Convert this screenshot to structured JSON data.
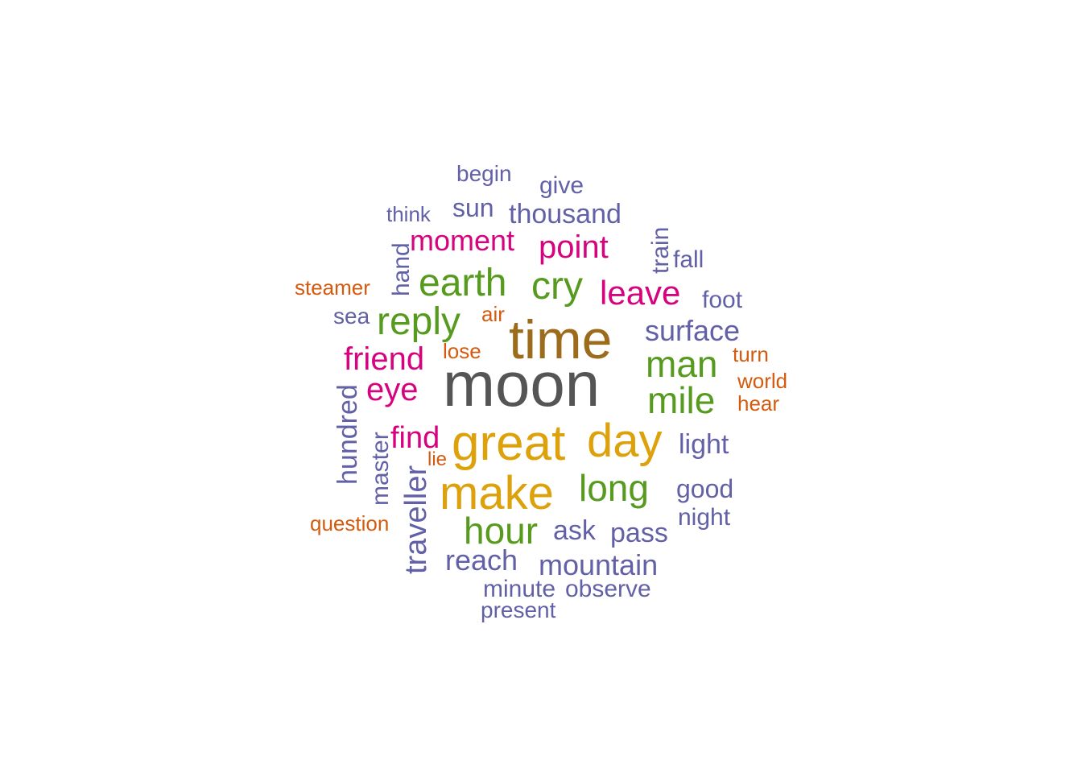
{
  "palette": {
    "dark_gray": "#555555",
    "brown": "#9C6B1C",
    "gold": "#DDA10C",
    "green": "#569A1E",
    "magenta": "#D6037F",
    "purple": "#6260A6",
    "orange": "#D45B0E"
  },
  "words": [
    {
      "text": "moon",
      "color": "dark_gray"
    },
    {
      "text": "time",
      "color": "brown"
    },
    {
      "text": "great",
      "color": "gold"
    },
    {
      "text": "day",
      "color": "gold"
    },
    {
      "text": "make",
      "color": "gold"
    },
    {
      "text": "earth",
      "color": "green"
    },
    {
      "text": "cry",
      "color": "green"
    },
    {
      "text": "reply",
      "color": "green"
    },
    {
      "text": "man",
      "color": "green"
    },
    {
      "text": "mile",
      "color": "green"
    },
    {
      "text": "long",
      "color": "green"
    },
    {
      "text": "hour",
      "color": "green"
    },
    {
      "text": "moment",
      "color": "magenta"
    },
    {
      "text": "point",
      "color": "magenta"
    },
    {
      "text": "leave",
      "color": "magenta"
    },
    {
      "text": "friend",
      "color": "magenta"
    },
    {
      "text": "eye",
      "color": "magenta"
    },
    {
      "text": "find",
      "color": "magenta"
    },
    {
      "text": "begin",
      "color": "purple"
    },
    {
      "text": "give",
      "color": "purple"
    },
    {
      "text": "think",
      "color": "purple"
    },
    {
      "text": "sun",
      "color": "purple"
    },
    {
      "text": "thousand",
      "color": "purple"
    },
    {
      "text": "hand",
      "color": "purple"
    },
    {
      "text": "train",
      "color": "purple"
    },
    {
      "text": "fall",
      "color": "purple"
    },
    {
      "text": "foot",
      "color": "purple"
    },
    {
      "text": "sea",
      "color": "purple"
    },
    {
      "text": "surface",
      "color": "purple"
    },
    {
      "text": "hundred",
      "color": "purple"
    },
    {
      "text": "master",
      "color": "purple"
    },
    {
      "text": "traveller",
      "color": "purple"
    },
    {
      "text": "light",
      "color": "purple"
    },
    {
      "text": "good",
      "color": "purple"
    },
    {
      "text": "night",
      "color": "purple"
    },
    {
      "text": "ask",
      "color": "purple"
    },
    {
      "text": "pass",
      "color": "purple"
    },
    {
      "text": "reach",
      "color": "purple"
    },
    {
      "text": "mountain",
      "color": "purple"
    },
    {
      "text": "minute",
      "color": "purple"
    },
    {
      "text": "observe",
      "color": "purple"
    },
    {
      "text": "present",
      "color": "purple"
    },
    {
      "text": "steamer",
      "color": "orange"
    },
    {
      "text": "air",
      "color": "orange"
    },
    {
      "text": "lose",
      "color": "orange"
    },
    {
      "text": "turn",
      "color": "orange"
    },
    {
      "text": "world",
      "color": "orange"
    },
    {
      "text": "hear",
      "color": "orange"
    },
    {
      "text": "lie",
      "color": "orange"
    },
    {
      "text": "question",
      "color": "orange"
    }
  ]
}
